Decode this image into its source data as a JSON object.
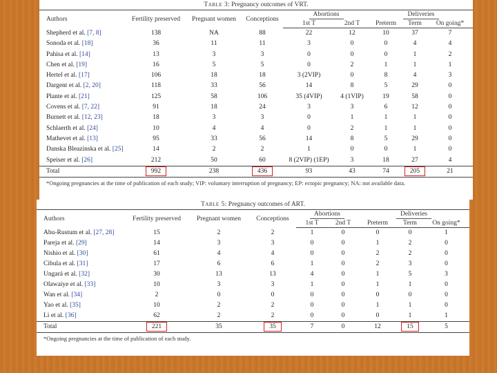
{
  "vrt": {
    "caption_label": "Table 3",
    "caption_text": ": Pregnancy outcomes of VRT.",
    "group_headers": {
      "abortions": "Abortions",
      "deliveries": "Deliveries"
    },
    "headers": [
      "Authors",
      "Fertility preserved",
      "Pregnant women",
      "Conceptions",
      "1st T",
      "2nd T",
      "Preterm",
      "Term",
      "On going*"
    ],
    "rows": [
      {
        "author": "Shepherd et al.",
        "ref": "[7, 8]",
        "cells": [
          "138",
          "NA",
          "88",
          "22",
          "12",
          "10",
          "37",
          "7"
        ]
      },
      {
        "author": "Sonoda et al.",
        "ref": "[18]",
        "cells": [
          "36",
          "11",
          "11",
          "3",
          "0",
          "0",
          "4",
          "4"
        ]
      },
      {
        "author": "Pahisa et al.",
        "ref": "[14]",
        "cells": [
          "13",
          "3",
          "3",
          "0",
          "0",
          "0",
          "1",
          "2"
        ]
      },
      {
        "author": "Chen et al.",
        "ref": "[19]",
        "cells": [
          "16",
          "5",
          "5",
          "0",
          "2",
          "1",
          "1",
          "1"
        ]
      },
      {
        "author": "Hertel et al.",
        "ref": "[17]",
        "cells": [
          "106",
          "18",
          "18",
          "3 (2VIP)",
          "0",
          "8",
          "4",
          "3"
        ]
      },
      {
        "author": "Dargent et al.",
        "ref": "[2, 20]",
        "cells": [
          "118",
          "33",
          "56",
          "14",
          "8",
          "5",
          "29",
          "0"
        ]
      },
      {
        "author": "Plante et al.",
        "ref": "[21]",
        "cells": [
          "125",
          "58",
          "106",
          "35 (4VIP)",
          "4 (1VIP)",
          "19",
          "58",
          "0"
        ]
      },
      {
        "author": "Covens et al.",
        "ref": "[7, 22]",
        "cells": [
          "91",
          "18",
          "24",
          "3",
          "3",
          "6",
          "12",
          "0"
        ]
      },
      {
        "author": "Burnett et al.",
        "ref": "[12, 23]",
        "cells": [
          "18",
          "3",
          "3",
          "0",
          "1",
          "1",
          "1",
          "0"
        ]
      },
      {
        "author": "Schlaerth et al.",
        "ref": "[24]",
        "cells": [
          "10",
          "4",
          "4",
          "0",
          "2",
          "1",
          "1",
          "0"
        ]
      },
      {
        "author": "Mathevet et al.",
        "ref": "[13]",
        "cells": [
          "95",
          "33",
          "56",
          "14",
          "8",
          "5",
          "29",
          "0"
        ]
      },
      {
        "author": "Danska Bleazinska et al.",
        "ref": "[25]",
        "cells": [
          "14",
          "2",
          "2",
          "1",
          "0",
          "0",
          "1",
          "0"
        ]
      },
      {
        "author": "Speiser et al.",
        "ref": "[26]",
        "cells": [
          "212",
          "50",
          "60",
          "8 (2VIP) (1EP)",
          "3",
          "18",
          "27",
          "4"
        ]
      }
    ],
    "total": {
      "label": "Total",
      "cells": [
        "992",
        "238",
        "436",
        "93",
        "43",
        "74",
        "205",
        "21"
      ]
    },
    "footnote": "*Ongoing pregnancies at the time of publication of each study; VIP: voluntary interruption of pregnancy; EP: ectopic pregnancy; NA: not available data."
  },
  "art": {
    "caption_label": "Table 5",
    "caption_text": ": Pregnancy outcomes of ART.",
    "group_headers": {
      "abortions": "Abortions",
      "deliveries": "Deliveries"
    },
    "headers": [
      "Authors",
      "Fertility preserved",
      "Pregnant women",
      "Conceptions",
      "1st T",
      "2nd T",
      "Preterm",
      "Term",
      "On going*"
    ],
    "rows": [
      {
        "author": "Abu-Rustum et al.",
        "ref": "[27, 28]",
        "cells": [
          "15",
          "2",
          "2",
          "1",
          "0",
          "0",
          "0",
          "1"
        ]
      },
      {
        "author": "Pareja et al.",
        "ref": "[29]",
        "cells": [
          "14",
          "3",
          "3",
          "0",
          "0",
          "1",
          "2",
          "0"
        ]
      },
      {
        "author": "Nishio et al.",
        "ref": "[30]",
        "cells": [
          "61",
          "4",
          "4",
          "0",
          "0",
          "2",
          "2",
          "0"
        ]
      },
      {
        "author": "Cibula et al.",
        "ref": "[31]",
        "cells": [
          "17",
          "6",
          "6",
          "1",
          "0",
          "2",
          "3",
          "0"
        ]
      },
      {
        "author": "Ungará et al.",
        "ref": "[32]",
        "cells": [
          "30",
          "13",
          "13",
          "4",
          "0",
          "1",
          "5",
          "3"
        ]
      },
      {
        "author": "Olawaiye et al.",
        "ref": "[33]",
        "cells": [
          "10",
          "3",
          "3",
          "1",
          "0",
          "1",
          "1",
          "0"
        ]
      },
      {
        "author": "Wan et al.",
        "ref": "[34]",
        "cells": [
          "2",
          "0",
          "0",
          "0",
          "0",
          "0",
          "0",
          "0"
        ]
      },
      {
        "author": "Yao et al.",
        "ref": "[35]",
        "cells": [
          "10",
          "2",
          "2",
          "0",
          "0",
          "1",
          "1",
          "0"
        ]
      },
      {
        "author": "Li et al.",
        "ref": "[36]",
        "cells": [
          "62",
          "2",
          "2",
          "0",
          "0",
          "0",
          "1",
          "1"
        ]
      }
    ],
    "total": {
      "label": "Total",
      "cells": [
        "221",
        "35",
        "35",
        "7",
        "0",
        "12",
        "15",
        "5"
      ]
    },
    "footnote": "*Ongoing pregnancies at the time of publication of each study."
  },
  "highlight_color": "#d22222"
}
